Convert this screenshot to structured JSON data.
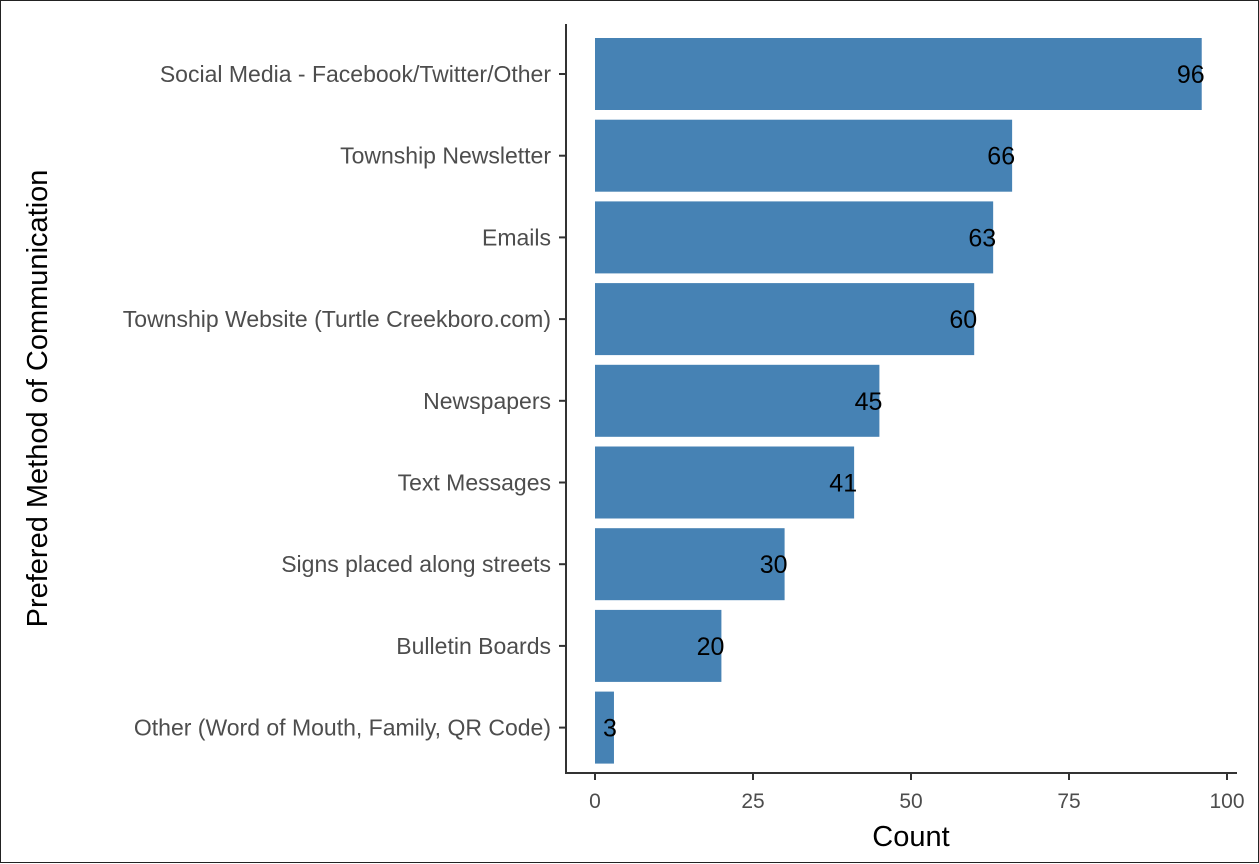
{
  "chart_data": {
    "type": "bar",
    "orientation": "horizontal",
    "categories": [
      "Social Media - Facebook/Twitter/Other",
      "Township Newsletter",
      "Emails",
      "Township Website (Turtle Creekboro.com)",
      "Newspapers",
      "Text Messages",
      "Signs placed along streets",
      "Bulletin Boards",
      "Other (Word of Mouth, Family, QR Code)"
    ],
    "values": [
      96,
      66,
      63,
      60,
      45,
      41,
      30,
      20,
      3
    ],
    "xlabel": "Count",
    "ylabel": "Prefered Method of Communication",
    "xlim": [
      0,
      100
    ],
    "xticks": [
      0,
      25,
      50,
      75,
      100
    ],
    "bar_color": "#4682b4",
    "data_labels": true,
    "grid": false,
    "legend": "none"
  }
}
